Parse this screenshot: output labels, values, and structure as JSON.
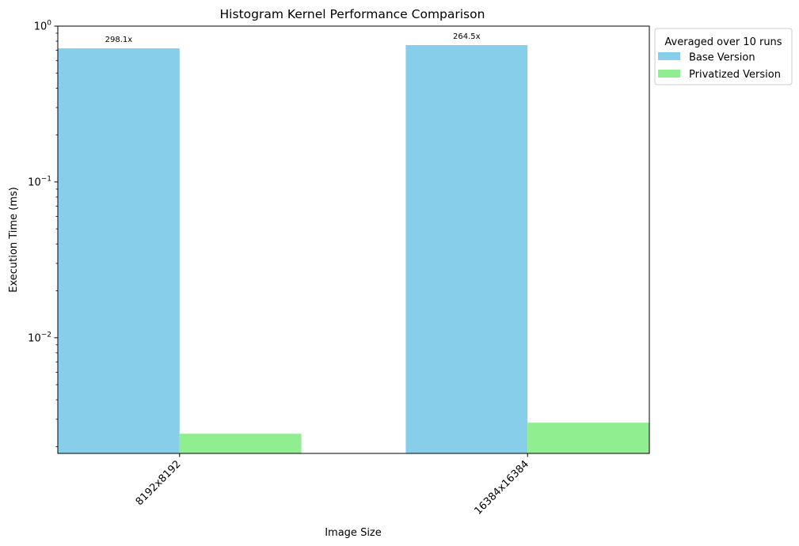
{
  "chart_data": {
    "type": "bar",
    "title": "Histogram Kernel Performance Comparison",
    "xlabel": "Image Size",
    "ylabel": "Execution Time (ms)",
    "yscale": "log",
    "ylim": [
      0.00181,
      1.0
    ],
    "yticks": [
      {
        "value": 1,
        "base": "10",
        "exp": "0"
      },
      {
        "value": 0.1,
        "base": "10",
        "exp": "−1"
      },
      {
        "value": 0.01,
        "base": "10",
        "exp": "−2"
      }
    ],
    "categories": [
      "8192x8192",
      "16384x16384"
    ],
    "series": [
      {
        "name": "Base Version",
        "color": "#87ceeb",
        "values": [
          0.72,
          0.755
        ]
      },
      {
        "name": "Privatized Version",
        "color": "#90ee90",
        "values": [
          0.00242,
          0.00285
        ]
      }
    ],
    "annotations": [
      "298.1x",
      "264.5x"
    ],
    "legend": {
      "title": "Averaged over 10 runs",
      "placement": "outside upper-right"
    },
    "grid": false,
    "tick_label_rotation": 45
  }
}
